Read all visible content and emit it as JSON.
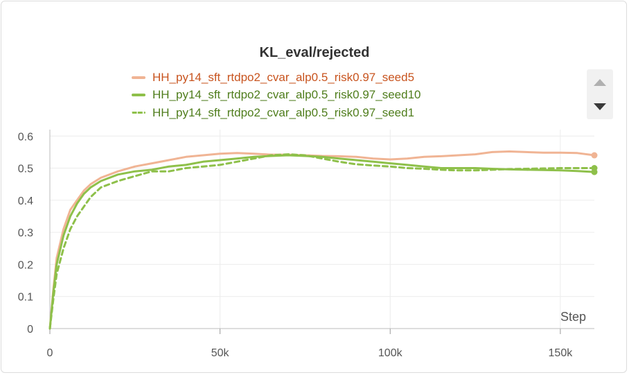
{
  "chart_data": {
    "type": "line",
    "title": "KL_eval/rejected",
    "xlabel": "Step",
    "ylabel": "",
    "xlim": [
      0,
      160000
    ],
    "ylim": [
      0,
      0.62
    ],
    "x_ticks": [
      0,
      50000,
      100000,
      150000
    ],
    "x_tick_labels": [
      "0",
      "50k",
      "100k",
      "150k"
    ],
    "y_ticks": [
      0,
      0.1,
      0.2,
      0.3,
      0.4,
      0.5,
      0.6
    ],
    "y_tick_labels": [
      "0",
      "0.1",
      "0.2",
      "0.3",
      "0.4",
      "0.5",
      "0.6"
    ],
    "grid": true,
    "legend_position": "top-center",
    "x": [
      0,
      1000,
      2000,
      4000,
      6000,
      8000,
      10000,
      12000,
      15000,
      20000,
      25000,
      30000,
      35000,
      40000,
      45000,
      50000,
      55000,
      60000,
      65000,
      70000,
      75000,
      80000,
      85000,
      90000,
      95000,
      100000,
      105000,
      110000,
      115000,
      120000,
      125000,
      130000,
      135000,
      140000,
      145000,
      150000,
      155000,
      160000
    ],
    "series": [
      {
        "name": "HH_py14_sft_rtdpo2_cvar_alp0.5_risk0.97_seed5",
        "color": "#f0b494",
        "legend_text_color": "#c8541f",
        "style": "solid",
        "values": [
          0.0,
          0.12,
          0.22,
          0.31,
          0.37,
          0.4,
          0.43,
          0.45,
          0.47,
          0.49,
          0.505,
          0.515,
          0.525,
          0.535,
          0.54,
          0.545,
          0.547,
          0.545,
          0.542,
          0.542,
          0.54,
          0.538,
          0.537,
          0.535,
          0.53,
          0.527,
          0.53,
          0.535,
          0.537,
          0.54,
          0.543,
          0.55,
          0.552,
          0.55,
          0.548,
          0.548,
          0.547,
          0.54
        ]
      },
      {
        "name": "HH_py14_sft_rtdpo2_cvar_alp0.5_risk0.97_seed10",
        "color": "#8ec04a",
        "legend_text_color": "#4f7d1c",
        "style": "solid",
        "values": [
          0.0,
          0.11,
          0.2,
          0.29,
          0.35,
          0.39,
          0.42,
          0.44,
          0.46,
          0.48,
          0.49,
          0.495,
          0.505,
          0.51,
          0.52,
          0.525,
          0.53,
          0.535,
          0.538,
          0.54,
          0.538,
          0.535,
          0.53,
          0.525,
          0.52,
          0.515,
          0.51,
          0.505,
          0.5,
          0.5,
          0.5,
          0.498,
          0.496,
          0.495,
          0.494,
          0.493,
          0.491,
          0.488
        ]
      },
      {
        "name": "HH_py14_sft_rtdpo2_cvar_alp0.5_risk0.97_seed1",
        "color": "#8ec04a",
        "legend_text_color": "#4f7d1c",
        "style": "dashed",
        "values": [
          0.0,
          0.09,
          0.17,
          0.25,
          0.31,
          0.35,
          0.38,
          0.41,
          0.44,
          0.46,
          0.475,
          0.49,
          0.49,
          0.5,
          0.505,
          0.51,
          0.52,
          0.53,
          0.54,
          0.543,
          0.54,
          0.53,
          0.52,
          0.512,
          0.508,
          0.505,
          0.5,
          0.498,
          0.495,
          0.493,
          0.493,
          0.495,
          0.497,
          0.498,
          0.499,
          0.5,
          0.5,
          0.5
        ]
      }
    ]
  }
}
